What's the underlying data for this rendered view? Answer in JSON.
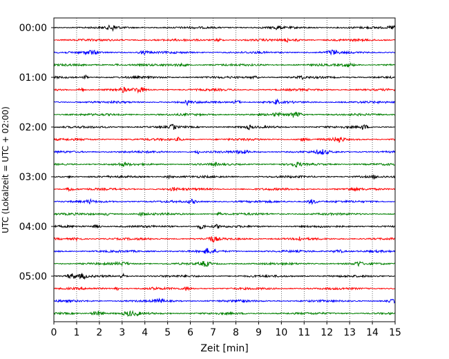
{
  "chart_data": {
    "type": "line",
    "title": "",
    "xlabel": "Zeit  [min]",
    "ylabel": "UTC (Lokalzeit = UTC + 02:00)",
    "xlim": [
      0,
      15
    ],
    "x_ticks": [
      "0",
      "1",
      "2",
      "3",
      "4",
      "5",
      "6",
      "7",
      "8",
      "9",
      "10",
      "11",
      "12",
      "13",
      "14",
      "15"
    ],
    "y_tick_labels": [
      "00:00",
      "01:00",
      "02:00",
      "03:00",
      "04:00",
      "05:00"
    ],
    "trace_interval_min": 15,
    "trace_count": 24,
    "trace_colors": [
      "#000000",
      "#ff0000",
      "#0000ff",
      "#008000"
    ],
    "grid": "vertical dotted lines at each minute",
    "legend": "none"
  }
}
